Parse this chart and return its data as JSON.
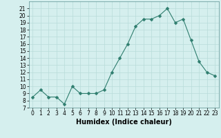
{
  "x": [
    0,
    1,
    2,
    3,
    4,
    5,
    6,
    7,
    8,
    9,
    10,
    11,
    12,
    13,
    14,
    15,
    16,
    17,
    18,
    19,
    20,
    21,
    22,
    23
  ],
  "y": [
    8.5,
    9.5,
    8.5,
    8.5,
    7.5,
    10,
    9,
    9,
    9,
    9.5,
    12,
    14,
    16,
    18.5,
    19.5,
    19.5,
    20,
    21,
    19,
    19.5,
    16.5,
    13.5,
    12,
    11.5
  ],
  "line_color": "#2e7d6e",
  "marker_color": "#2e7d6e",
  "bg_color": "#d5efee",
  "grid_color": "#b8dbd9",
  "xlabel": "Humidex (Indice chaleur)",
  "xlim": [
    -0.5,
    23.5
  ],
  "ylim": [
    7,
    22
  ],
  "yticks": [
    7,
    8,
    9,
    10,
    11,
    12,
    13,
    14,
    15,
    16,
    17,
    18,
    19,
    20,
    21
  ],
  "xticks": [
    0,
    1,
    2,
    3,
    4,
    5,
    6,
    7,
    8,
    9,
    10,
    11,
    12,
    13,
    14,
    15,
    16,
    17,
    18,
    19,
    20,
    21,
    22,
    23
  ],
  "tick_fontsize": 5.5,
  "label_fontsize": 7,
  "marker_size": 2.5,
  "linewidth": 0.8
}
